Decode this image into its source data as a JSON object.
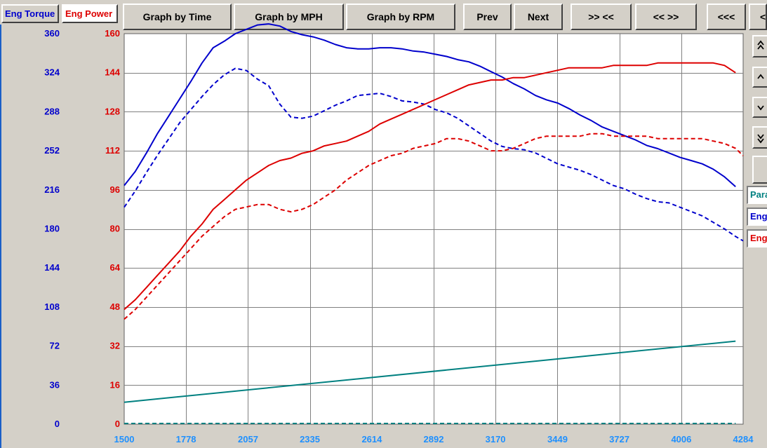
{
  "tabs": {
    "torque": "Eng Torque",
    "power": "Eng Power"
  },
  "toolbar": {
    "graph_by_time": "Graph by Time",
    "graph_by_mph": "Graph by MPH",
    "graph_by_rpm": "Graph by RPM",
    "prev": "Prev",
    "next": "Next",
    "zoom_in": ">> <<",
    "zoom_out": "<< >>",
    "scroll_left": "<<<",
    "extra": "<"
  },
  "side_panel": {
    "buttons": [
      "page-up-icon",
      "up-icon",
      "down-icon",
      "page-down-icon",
      "blank"
    ],
    "legend": [
      {
        "label": "Para",
        "color": "#008080"
      },
      {
        "label": "Eng",
        "color": "#0000cc"
      },
      {
        "label": "Eng",
        "color": "#dd0000"
      }
    ]
  },
  "colors": {
    "torque": "#0000cc",
    "power": "#dd0000",
    "parameter": "#008080",
    "x_tick": "#1e90ff",
    "plot_bg": "#ffffff",
    "grid": "#808080"
  },
  "chart_data": {
    "type": "line",
    "x_ticks": [
      1500,
      1778,
      2057,
      2335,
      2614,
      2892,
      3170,
      3449,
      3727,
      4006,
      4284
    ],
    "xlim": [
      1500,
      4284
    ],
    "y_left_ticks": [
      0,
      36,
      72,
      108,
      144,
      180,
      216,
      252,
      288,
      324,
      360
    ],
    "y_left_lim": [
      0,
      360
    ],
    "y_right_ticks": [
      0,
      16,
      32,
      48,
      64,
      80,
      96,
      112,
      128,
      144,
      160
    ],
    "y_right_lim": [
      0,
      160
    ],
    "grid": true,
    "series": [
      {
        "axis": "left",
        "color": "#0000cc",
        "style": "solid",
        "x": [
          1500,
          1550,
          1600,
          1650,
          1700,
          1750,
          1800,
          1850,
          1900,
          1950,
          2000,
          2050,
          2100,
          2150,
          2200,
          2250,
          2300,
          2350,
          2400,
          2450,
          2500,
          2550,
          2600,
          2650,
          2700,
          2750,
          2800,
          2850,
          2900,
          2950,
          3000,
          3050,
          3100,
          3150,
          3200,
          3250,
          3300,
          3350,
          3400,
          3450,
          3500,
          3550,
          3600,
          3650,
          3700,
          3750,
          3800,
          3850,
          3900,
          3950,
          4000,
          4050,
          4100,
          4150,
          4200,
          4250
        ],
        "y": [
          220,
          233,
          250,
          268,
          284,
          300,
          316,
          333,
          347,
          353,
          360,
          364,
          368,
          369,
          367,
          362,
          359,
          357,
          354,
          350,
          347,
          346,
          346,
          347,
          347,
          346,
          344,
          343,
          341,
          339,
          336,
          334,
          330,
          325,
          320,
          314,
          309,
          303,
          299,
          296,
          291,
          285,
          280,
          274,
          270,
          266,
          262,
          257,
          254,
          250,
          246,
          243,
          240,
          235,
          228,
          219
        ]
      },
      {
        "axis": "left",
        "color": "#0000cc",
        "style": "dashed",
        "x": [
          1500,
          1550,
          1600,
          1650,
          1700,
          1750,
          1800,
          1850,
          1900,
          1950,
          2000,
          2050,
          2100,
          2150,
          2200,
          2250,
          2300,
          2350,
          2400,
          2450,
          2500,
          2550,
          2600,
          2650,
          2700,
          2750,
          2800,
          2850,
          2900,
          2950,
          3000,
          3050,
          3100,
          3150,
          3200,
          3250,
          3300,
          3350,
          3400,
          3450,
          3500,
          3550,
          3600,
          3650,
          3700,
          3750,
          3800,
          3850,
          3900,
          3950,
          4000,
          4050,
          4100,
          4150,
          4200,
          4250,
          4284
        ],
        "y": [
          200,
          215,
          232,
          248,
          263,
          278,
          290,
          302,
          313,
          322,
          328,
          326,
          318,
          312,
          295,
          283,
          282,
          284,
          289,
          294,
          298,
          303,
          304,
          305,
          302,
          298,
          297,
          295,
          290,
          287,
          282,
          275,
          268,
          261,
          256,
          254,
          253,
          250,
          245,
          240,
          237,
          234,
          230,
          225,
          220,
          217,
          212,
          208,
          205,
          204,
          200,
          196,
          192,
          186,
          180,
          173,
          169
        ]
      },
      {
        "axis": "right",
        "color": "#dd0000",
        "style": "solid",
        "x": [
          1500,
          1550,
          1600,
          1650,
          1700,
          1750,
          1800,
          1850,
          1900,
          1950,
          2000,
          2050,
          2100,
          2150,
          2200,
          2250,
          2300,
          2350,
          2400,
          2450,
          2500,
          2550,
          2600,
          2650,
          2700,
          2750,
          2800,
          2850,
          2900,
          2950,
          3000,
          3050,
          3100,
          3150,
          3200,
          3250,
          3300,
          3350,
          3400,
          3450,
          3500,
          3550,
          3600,
          3650,
          3700,
          3750,
          3800,
          3850,
          3900,
          3950,
          4000,
          4050,
          4100,
          4150,
          4200,
          4250
        ],
        "y": [
          47,
          51,
          56,
          61,
          66,
          71,
          77,
          82,
          88,
          92,
          96,
          100,
          103,
          106,
          108,
          109,
          111,
          112,
          114,
          115,
          116,
          118,
          120,
          123,
          125,
          127,
          129,
          131,
          133,
          135,
          137,
          139,
          140,
          141,
          141,
          142,
          142,
          143,
          144,
          145,
          146,
          146,
          146,
          146,
          147,
          147,
          147,
          147,
          148,
          148,
          148,
          148,
          148,
          148,
          147,
          144
        ]
      },
      {
        "axis": "right",
        "color": "#dd0000",
        "style": "dashed",
        "x": [
          1500,
          1550,
          1600,
          1650,
          1700,
          1750,
          1800,
          1850,
          1900,
          1950,
          2000,
          2050,
          2100,
          2150,
          2200,
          2250,
          2300,
          2350,
          2400,
          2450,
          2500,
          2550,
          2600,
          2650,
          2700,
          2750,
          2800,
          2850,
          2900,
          2950,
          3000,
          3050,
          3100,
          3150,
          3200,
          3250,
          3300,
          3350,
          3400,
          3450,
          3500,
          3550,
          3600,
          3650,
          3700,
          3750,
          3800,
          3850,
          3900,
          3950,
          4000,
          4050,
          4100,
          4150,
          4200,
          4250,
          4284
        ],
        "y": [
          43,
          47,
          52,
          57,
          62,
          67,
          72,
          77,
          81,
          85,
          88,
          89,
          90,
          90,
          88,
          87,
          88,
          90,
          93,
          96,
          100,
          103,
          106,
          108,
          110,
          111,
          113,
          114,
          115,
          117,
          117,
          116,
          114,
          112,
          112,
          113,
          115,
          117,
          118,
          118,
          118,
          118,
          119,
          119,
          118,
          118,
          118,
          118,
          117,
          117,
          117,
          117,
          117,
          116,
          115,
          113,
          110
        ]
      },
      {
        "axis": "right",
        "color": "#008080",
        "style": "solid",
        "x": [
          1500,
          4250
        ],
        "y": [
          9,
          34
        ]
      },
      {
        "axis": "right",
        "color": "#008080",
        "style": "dashed",
        "x": [
          1500,
          4250
        ],
        "y": [
          0.3,
          0.3
        ]
      }
    ]
  }
}
